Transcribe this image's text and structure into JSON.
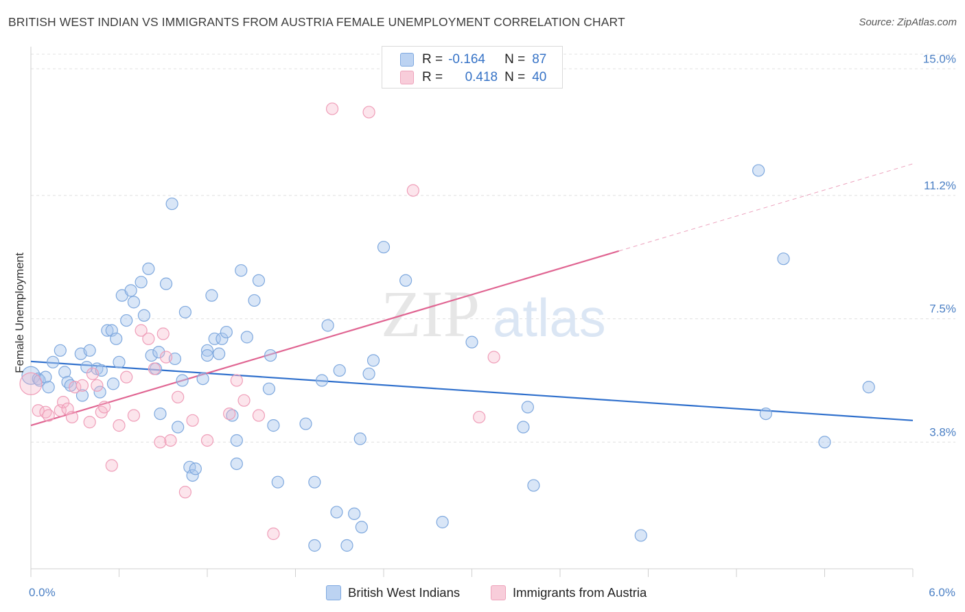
{
  "chart_data": {
    "type": "scatter",
    "title": "BRITISH WEST INDIAN VS IMMIGRANTS FROM AUSTRIA FEMALE UNEMPLOYMENT CORRELATION CHART",
    "source": "Source: ZipAtlas.com",
    "watermark": "ZIPatlas",
    "ylabel": "Female Unemployment",
    "xlim": [
      0,
      6
    ],
    "ylim": [
      0,
      15.5
    ],
    "x_tick_labels": [
      {
        "value": 0,
        "label": "0.0%"
      },
      {
        "value": 6,
        "label": "6.0%"
      }
    ],
    "y_ticks": [
      {
        "value": 3.8,
        "label": "3.8%"
      },
      {
        "value": 7.5,
        "label": "7.5%"
      },
      {
        "value": 11.2,
        "label": "11.2%"
      },
      {
        "value": 15.0,
        "label": "15.0%"
      }
    ],
    "legend": {
      "rows": [
        {
          "r_label": "R =",
          "r_value": "-0.164",
          "n_label": "N =",
          "n_value": "87"
        },
        {
          "r_label": "R =",
          "r_value": "0.418",
          "n_label": "N =",
          "n_value": "40"
        }
      ]
    },
    "series": [
      {
        "name": "British West Indians",
        "color": "#8fb6e8",
        "line_color": "#2e6fcc",
        "trend": {
          "x0": 0,
          "y0": 6.22,
          "x1": 6,
          "y1": 4.45,
          "solid_until": 6
        },
        "points": [
          [
            0.0,
            5.8
          ],
          [
            0.05,
            5.7
          ],
          [
            0.06,
            5.65
          ],
          [
            0.1,
            5.75
          ],
          [
            0.12,
            5.45
          ],
          [
            0.15,
            6.2
          ],
          [
            0.2,
            6.55
          ],
          [
            0.23,
            5.9
          ],
          [
            0.25,
            5.6
          ],
          [
            0.27,
            5.5
          ],
          [
            0.34,
            6.45
          ],
          [
            0.38,
            6.05
          ],
          [
            0.4,
            6.55
          ],
          [
            0.45,
            6.0
          ],
          [
            0.47,
            5.3
          ],
          [
            0.52,
            7.15
          ],
          [
            0.55,
            7.15
          ],
          [
            0.56,
            5.55
          ],
          [
            0.58,
            6.9
          ],
          [
            0.6,
            6.2
          ],
          [
            0.62,
            8.2
          ],
          [
            0.65,
            7.45
          ],
          [
            0.68,
            8.35
          ],
          [
            0.7,
            8.0
          ],
          [
            0.75,
            8.6
          ],
          [
            0.77,
            7.6
          ],
          [
            0.8,
            9.0
          ],
          [
            0.82,
            6.4
          ],
          [
            0.85,
            6.0
          ],
          [
            0.87,
            6.5
          ],
          [
            0.88,
            4.65
          ],
          [
            0.92,
            8.55
          ],
          [
            0.96,
            10.95
          ],
          [
            0.98,
            6.3
          ],
          [
            1.0,
            4.25
          ],
          [
            1.03,
            5.65
          ],
          [
            1.05,
            7.7
          ],
          [
            1.08,
            3.05
          ],
          [
            1.1,
            2.8
          ],
          [
            1.12,
            3.0
          ],
          [
            1.17,
            5.7
          ],
          [
            1.2,
            6.55
          ],
          [
            1.23,
            8.2
          ],
          [
            1.25,
            6.9
          ],
          [
            1.28,
            6.45
          ],
          [
            1.3,
            6.9
          ],
          [
            1.33,
            7.1
          ],
          [
            1.37,
            4.6
          ],
          [
            1.4,
            3.85
          ],
          [
            1.4,
            3.15
          ],
          [
            1.43,
            8.95
          ],
          [
            1.47,
            6.95
          ],
          [
            1.52,
            8.05
          ],
          [
            1.55,
            8.65
          ],
          [
            1.62,
            5.4
          ],
          [
            1.63,
            6.4
          ],
          [
            1.65,
            4.3
          ],
          [
            1.68,
            2.6
          ],
          [
            1.87,
            4.35
          ],
          [
            1.93,
            2.6
          ],
          [
            1.93,
            0.7
          ],
          [
            1.98,
            5.65
          ],
          [
            2.02,
            7.3
          ],
          [
            2.08,
            1.7
          ],
          [
            2.1,
            5.95
          ],
          [
            2.15,
            0.7
          ],
          [
            2.2,
            1.65
          ],
          [
            2.24,
            3.9
          ],
          [
            2.25,
            1.25
          ],
          [
            2.3,
            5.85
          ],
          [
            2.33,
            6.25
          ],
          [
            2.4,
            9.65
          ],
          [
            2.55,
            8.65
          ],
          [
            2.8,
            1.4
          ],
          [
            3.0,
            6.8
          ],
          [
            3.35,
            4.25
          ],
          [
            3.38,
            4.85
          ],
          [
            3.42,
            2.5
          ],
          [
            4.15,
            1.0
          ],
          [
            4.95,
            11.95
          ],
          [
            5.0,
            4.65
          ],
          [
            5.12,
            9.3
          ],
          [
            5.4,
            3.8
          ],
          [
            5.7,
            5.45
          ],
          [
            0.35,
            5.2
          ],
          [
            0.48,
            5.95
          ],
          [
            1.2,
            6.4
          ]
        ]
      },
      {
        "name": "Immigrants from Austria",
        "color": "#f2a7bf",
        "line_color": "#e06592",
        "trend": {
          "x0": 0,
          "y0": 4.3,
          "x1": 6,
          "y1": 12.15,
          "solid_until": 4.0
        },
        "points": [
          [
            0.0,
            5.55
          ],
          [
            0.05,
            4.75
          ],
          [
            0.1,
            4.7
          ],
          [
            0.12,
            4.6
          ],
          [
            0.2,
            4.75
          ],
          [
            0.22,
            5.0
          ],
          [
            0.25,
            4.8
          ],
          [
            0.28,
            4.55
          ],
          [
            0.3,
            5.45
          ],
          [
            0.35,
            5.5
          ],
          [
            0.4,
            4.4
          ],
          [
            0.42,
            5.85
          ],
          [
            0.45,
            5.5
          ],
          [
            0.48,
            4.7
          ],
          [
            0.5,
            4.85
          ],
          [
            0.55,
            3.1
          ],
          [
            0.6,
            4.3
          ],
          [
            0.65,
            5.75
          ],
          [
            0.7,
            4.6
          ],
          [
            0.75,
            7.15
          ],
          [
            0.8,
            6.9
          ],
          [
            0.84,
            6.0
          ],
          [
            0.88,
            3.8
          ],
          [
            0.9,
            7.05
          ],
          [
            0.92,
            6.35
          ],
          [
            0.95,
            3.85
          ],
          [
            1.0,
            5.15
          ],
          [
            1.05,
            2.3
          ],
          [
            1.1,
            4.45
          ],
          [
            1.2,
            3.85
          ],
          [
            1.35,
            4.65
          ],
          [
            1.4,
            5.65
          ],
          [
            1.45,
            5.05
          ],
          [
            1.55,
            4.6
          ],
          [
            1.65,
            1.05
          ],
          [
            2.05,
            13.8
          ],
          [
            2.3,
            13.7
          ],
          [
            2.6,
            11.35
          ],
          [
            3.05,
            4.55
          ],
          [
            3.15,
            6.35
          ]
        ]
      }
    ]
  }
}
